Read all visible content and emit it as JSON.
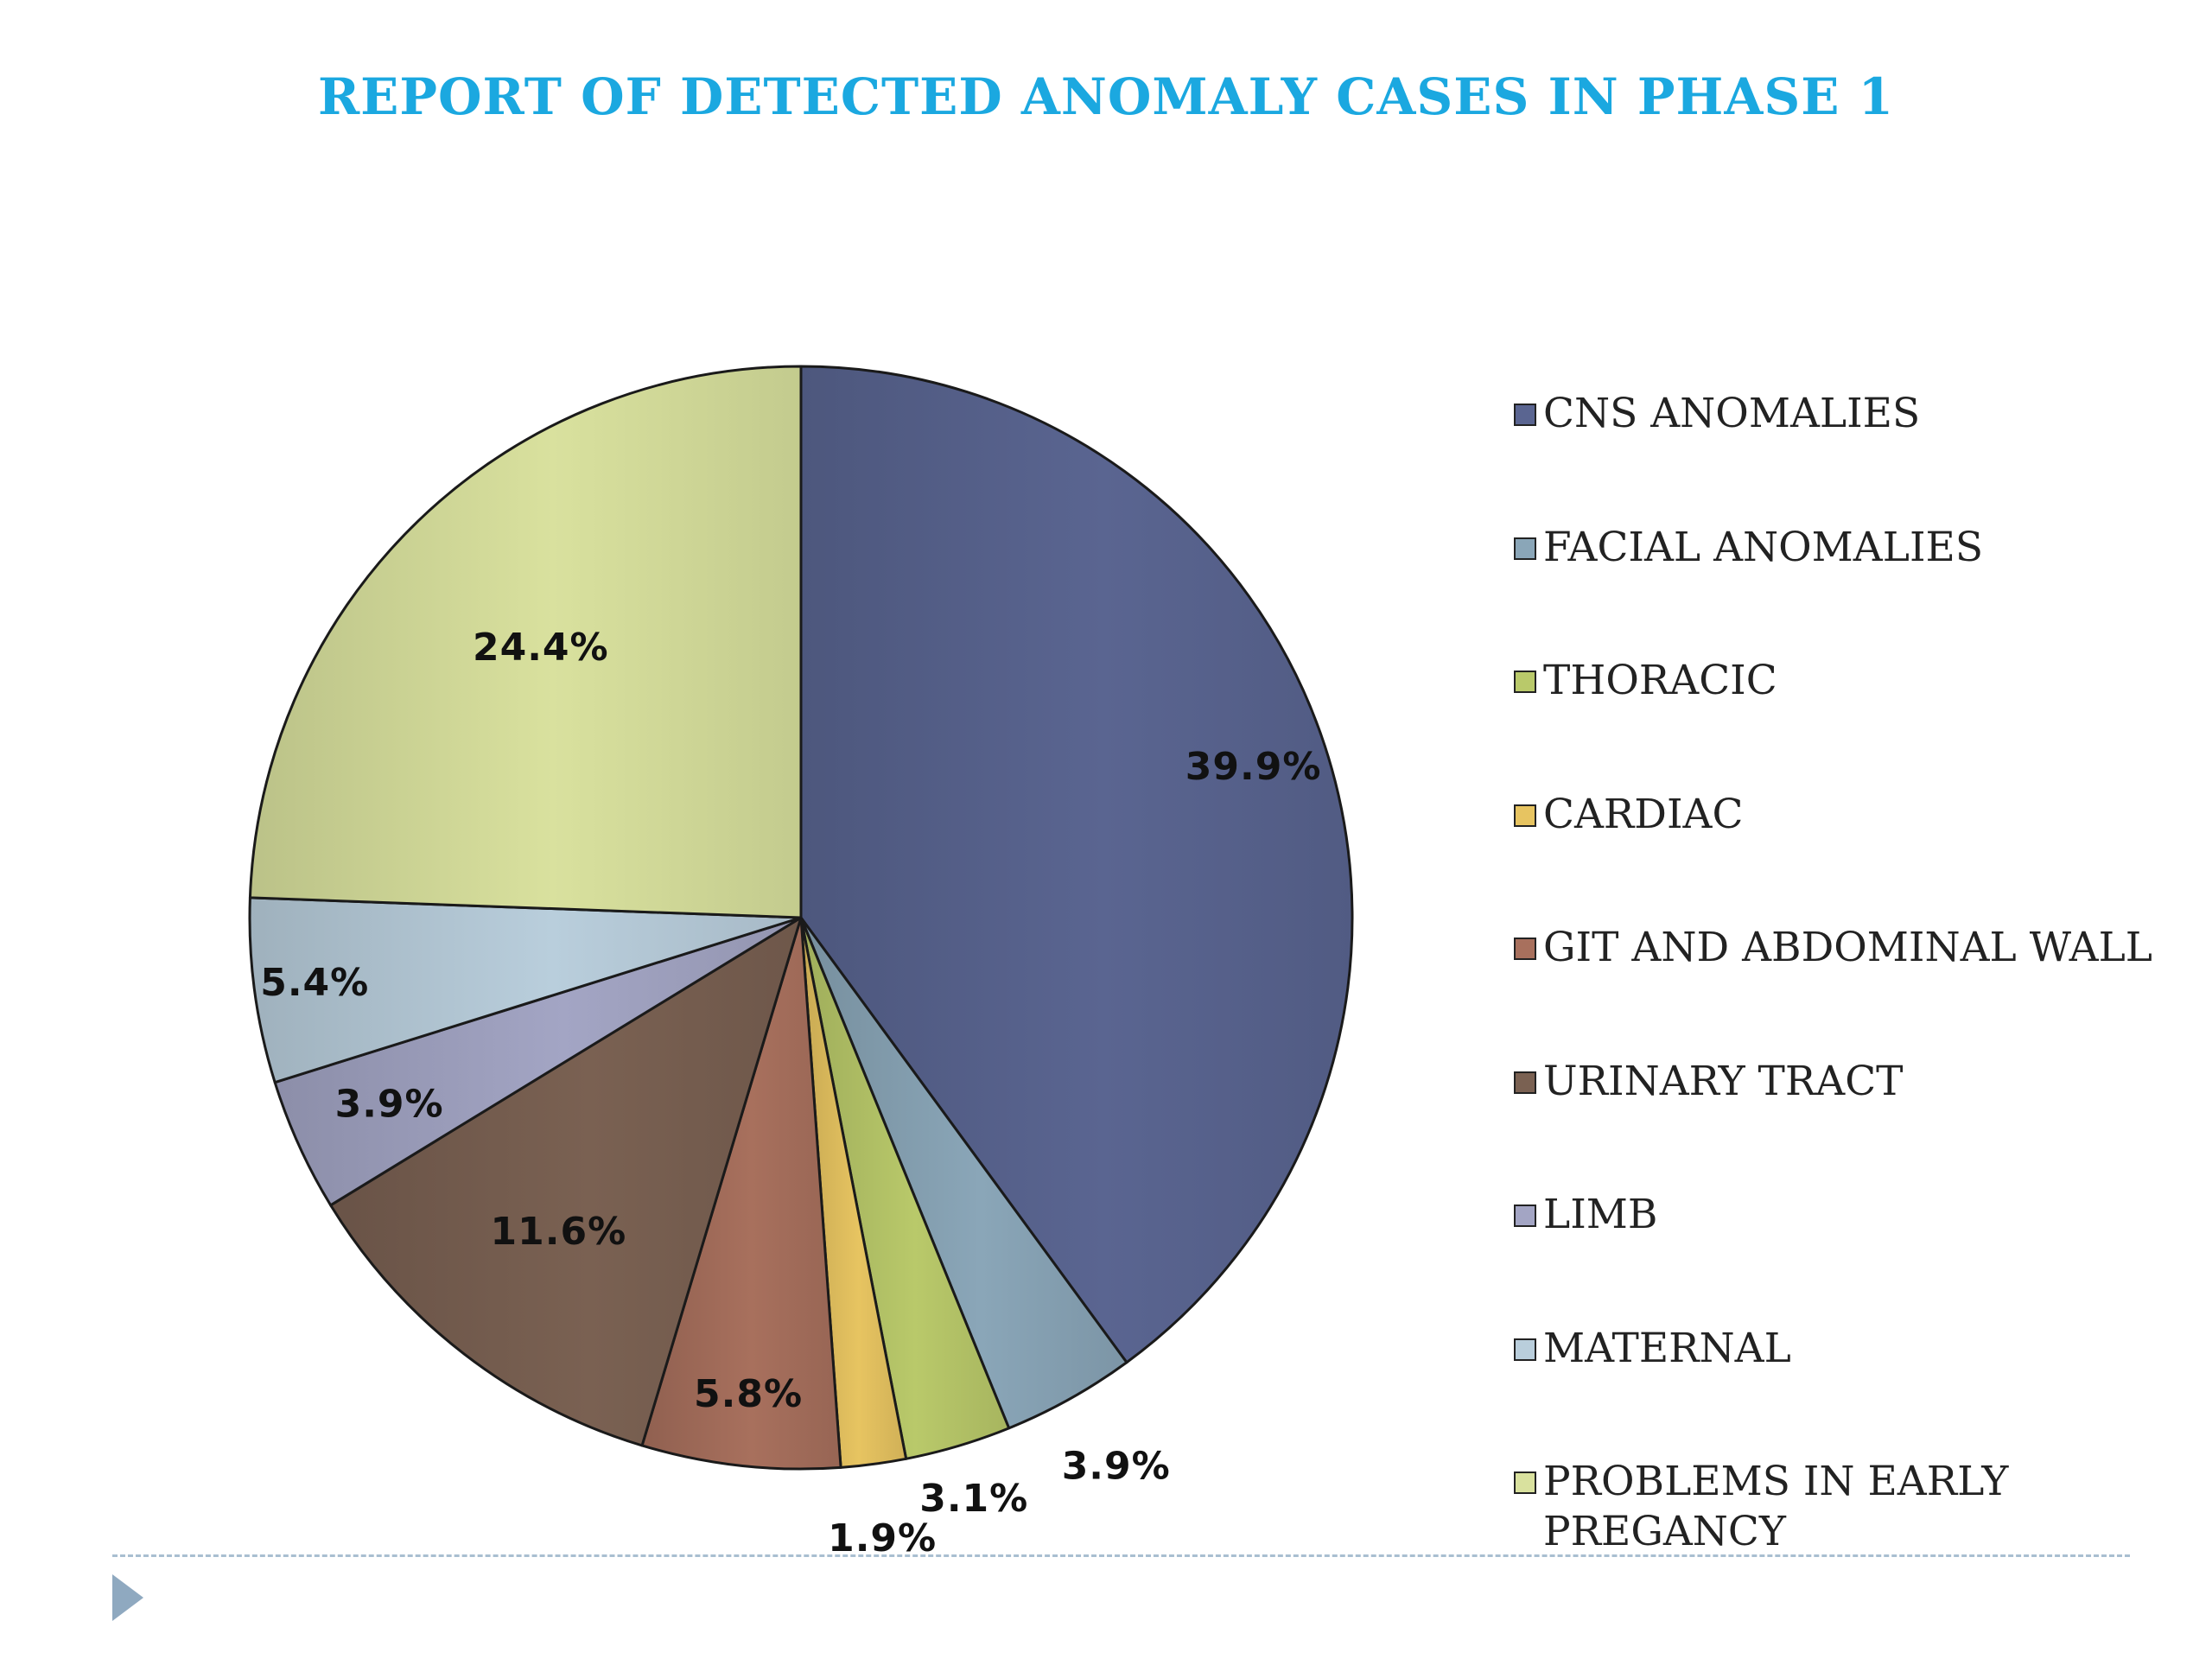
{
  "chart_data": {
    "type": "pie",
    "title": "REPORT OF DETECTED ANOMALY CASES IN PHASE 1",
    "legend_position": "right",
    "start_angle_deg": 0,
    "direction": "clockwise",
    "slices": [
      {
        "label": "CNS ANOMALIES",
        "value": 39.9,
        "display": "39.9%",
        "color": "#5a6591"
      },
      {
        "label": "FACIAL ANOMALIES",
        "value": 3.9,
        "display": "3.9%",
        "color": "#8aa6b8"
      },
      {
        "label": "THORACIC",
        "value": 3.1,
        "display": "3.1%",
        "color": "#b9c96a"
      },
      {
        "label": "CARDIAC",
        "value": 1.9,
        "display": "1.9%",
        "color": "#e7c461"
      },
      {
        "label": "GIT AND ABDOMINAL WALL",
        "value": 5.8,
        "display": "5.8%",
        "color": "#a8705d"
      },
      {
        "label": "URINARY TRACT",
        "value": 11.6,
        "display": "11.6%",
        "color": "#7a6152"
      },
      {
        "label": "LIMB",
        "value": 3.9,
        "display": "3.9%",
        "color": "#a3a5c4"
      },
      {
        "label": "MATERNAL",
        "value": 5.4,
        "display": "5.4%",
        "color": "#b9cedc"
      },
      {
        "label": "PROBLEMS IN EARLY PREGANCY",
        "value": 24.4,
        "display": "24.4%",
        "color": "#d9e19e"
      }
    ]
  },
  "colors": {
    "title": "#1ba8e0",
    "rule": "#a9bfd1",
    "nav_arrow": "#8fa9c0"
  },
  "icons": {
    "nav": "play-triangle-icon"
  }
}
